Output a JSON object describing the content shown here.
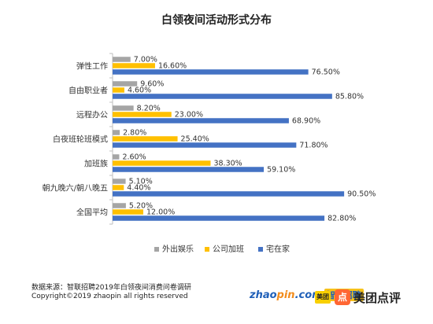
{
  "chart_data": {
    "type": "bar",
    "orientation": "horizontal",
    "title": "白领夜间活动形式分布",
    "categories": [
      "弹性工作",
      "自由职业者",
      "远程办公",
      "白夜班轮班模式",
      "加班族",
      "朝九晚六/朝八晚五",
      "全国平均"
    ],
    "series": [
      {
        "name": "外出娱乐",
        "color": "#a5a5a5",
        "values": [
          7.0,
          9.6,
          8.2,
          2.8,
          2.6,
          5.1,
          5.2
        ],
        "labels": [
          "7.00%",
          "9.60%",
          "8.20%",
          "2.80%",
          "2.60%",
          "5.10%",
          "5.20%"
        ]
      },
      {
        "name": "公司加班",
        "color": "#ffc000",
        "values": [
          16.6,
          4.6,
          23.0,
          25.4,
          38.3,
          4.4,
          12.0
        ],
        "labels": [
          "16.60%",
          "4.60%",
          "23.00%",
          "25.40%",
          "38.30%",
          "4.40%",
          "12.00%"
        ]
      },
      {
        "name": "宅在家",
        "color": "#4472c4",
        "values": [
          76.5,
          85.8,
          68.9,
          71.8,
          59.1,
          90.5,
          82.8
        ],
        "labels": [
          "76.50%",
          "85.80%",
          "68.90%",
          "71.80%",
          "59.10%",
          "90.50%",
          "82.80%"
        ]
      }
    ],
    "xlim": [
      0,
      100
    ],
    "grid": false,
    "legend_position": "bottom"
  },
  "footer": {
    "source": "数据来源：智联招聘2019年白领夜间消费问卷调研",
    "copyright": "Copyright©2019 zhaopin all rights reserved"
  },
  "logos": {
    "zhaopin_a": "zhao",
    "zhaopin_b": "pin",
    "zhaopin_c": ".com",
    "zhaopin_cn": "智联招聘",
    "meituan_small": "美团",
    "dianping_badge": "点",
    "dianping_text": "美团点评"
  }
}
